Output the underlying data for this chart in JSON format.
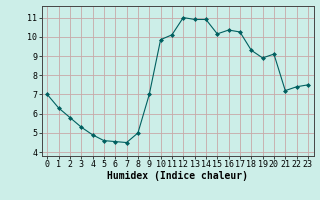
{
  "x": [
    0,
    1,
    2,
    3,
    4,
    5,
    6,
    7,
    8,
    9,
    10,
    11,
    12,
    13,
    14,
    15,
    16,
    17,
    18,
    19,
    20,
    21,
    22,
    23
  ],
  "y": [
    7.0,
    6.3,
    5.8,
    5.3,
    4.9,
    4.6,
    4.55,
    4.5,
    5.0,
    7.0,
    9.85,
    10.1,
    11.0,
    10.9,
    10.9,
    10.15,
    10.35,
    10.25,
    9.3,
    8.9,
    9.1,
    7.2,
    7.4,
    7.5
  ],
  "line_color": "#006060",
  "marker": "D",
  "marker_size": 2.0,
  "bg_color": "#cceee8",
  "grid_color": "#c8a8a8",
  "xlabel": "Humidex (Indice chaleur)",
  "xlabel_fontsize": 7,
  "tick_fontsize": 6,
  "ylim": [
    3.8,
    11.6
  ],
  "xlim": [
    -0.5,
    23.5
  ],
  "yticks": [
    4,
    5,
    6,
    7,
    8,
    9,
    10,
    11
  ],
  "xticks": [
    0,
    1,
    2,
    3,
    4,
    5,
    6,
    7,
    8,
    9,
    10,
    11,
    12,
    13,
    14,
    15,
    16,
    17,
    18,
    19,
    20,
    21,
    22,
    23
  ]
}
